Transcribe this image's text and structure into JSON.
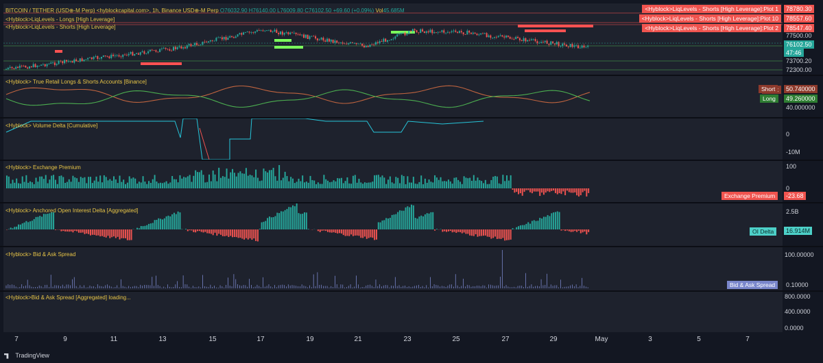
{
  "header": {
    "symbol": "BITCOIN / TETHER (USD⊕-M Perp) <hyblockcapital.com>, 1h, Binance USD⊕-M Perp",
    "o_label": "O",
    "o": "76032.90",
    "h_label": "H",
    "h": "76140.00",
    "l_label": "L",
    "l": "76009.80",
    "c_label": "C",
    "c": "76102.50",
    "change": "+69.60 (+0.09%)",
    "vol_label": "Vol",
    "vol": "45.685M"
  },
  "price_pane": {
    "indicators": [
      "<Hyblock>LiqLevels - Longs [High Leverage]",
      "<Hyblock>LiqLevels - Shorts [High Leverage]"
    ],
    "level_tags": [
      {
        "label": "<Hyblock>LiqLevels - Shorts [High Leverage]:Plot 1",
        "value": "78780.30"
      },
      {
        "label": "<Hyblock>LiqLevels - Shorts [High Leverage]:Plot 10",
        "value": "78557.60"
      },
      {
        "label": "<Hyblock>LiqLevels - Shorts [High Leverage]:Plot 2",
        "value": "78547.40"
      }
    ],
    "axis_ticks": [
      "77500.00",
      "73700.20",
      "72300.00"
    ],
    "last_price": "76102.50",
    "countdown": "47:46",
    "colors": {
      "up": "#26a69a",
      "down": "#ef5350",
      "longs": "#7cff5c",
      "shorts": "#ff5252"
    }
  },
  "retail_pane": {
    "title": "<Hyblock> True Retail Longs & Shorts Accounts [Binance]",
    "short_label": "Short",
    "short_value": "50.740000",
    "long_label": "Long",
    "long_value": "49.260000",
    "axis_ticks": [
      "40.000000"
    ]
  },
  "vdelta_pane": {
    "title": "<Hyblock> Volume Delta [Cumulative]",
    "axis_ticks": [
      "0",
      "-10M"
    ]
  },
  "premium_pane": {
    "title": "<Hyblock> Exchange Premium",
    "axis_ticks": [
      "100",
      "0"
    ],
    "tag_label": "Exchange Premium",
    "tag_value": "-23.68"
  },
  "oi_pane": {
    "title": "<Hyblock> Anchored Open Interest Delta [Aggregated]",
    "axis_ticks": [
      "2.5B"
    ],
    "tag_label": "OI Delta",
    "tag_value": "16.914M"
  },
  "spread_pane": {
    "title": "<Hyblock> Bid & Ask Spread",
    "axis_ticks": [
      "100.00000"
    ],
    "tag_label": "Bid & Ask Spread",
    "tag_value": "0.10000"
  },
  "agg_pane": {
    "title": "<Hyblock>Bid & Ask Spread [Aggregated] loading...",
    "axis_ticks": [
      "800.0000",
      "400.0000",
      "0.0000"
    ]
  },
  "x_axis": [
    "7",
    "9",
    "11",
    "13",
    "15",
    "17",
    "19",
    "21",
    "23",
    "25",
    "27",
    "29",
    "May",
    "3",
    "5",
    "7"
  ],
  "brand": "TradingView"
}
